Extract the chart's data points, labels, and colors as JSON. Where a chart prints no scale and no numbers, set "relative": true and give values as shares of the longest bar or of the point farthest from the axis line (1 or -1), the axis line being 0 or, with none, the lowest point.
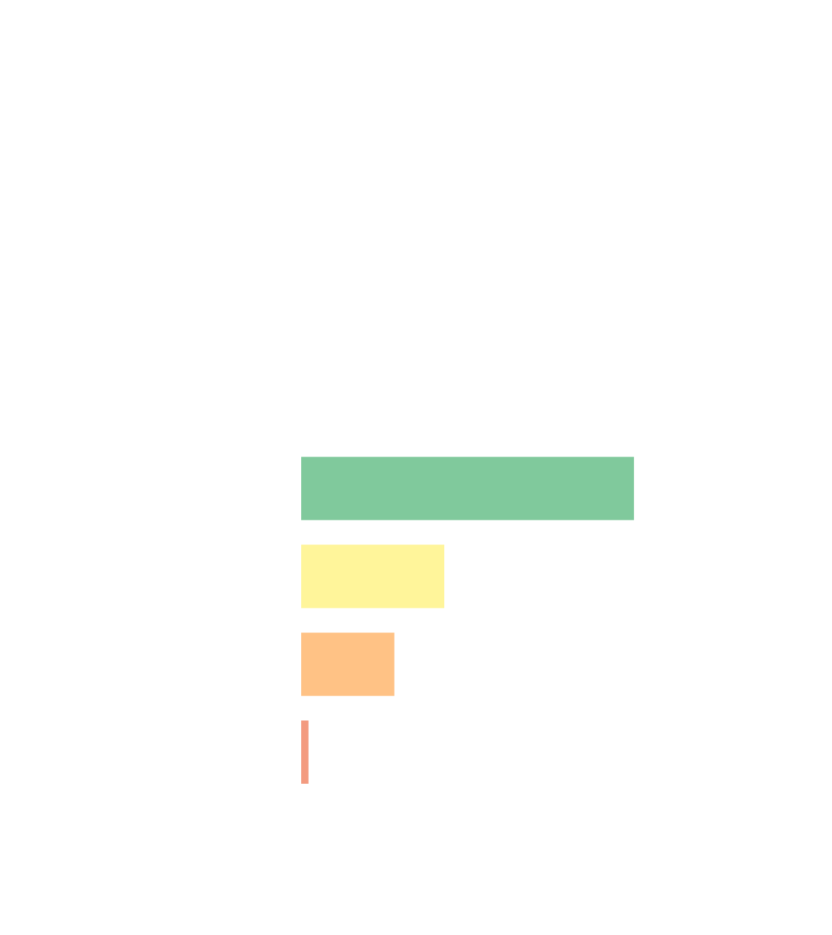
{
  "chart_data": {
    "type": "bar",
    "orientation": "horizontal",
    "relative": true,
    "categories": [
      null,
      null,
      null,
      null
    ],
    "values": [
      1,
      0.43,
      0.28,
      0.022
    ],
    "colors": [
      "#80c99c",
      "#fff59a",
      "#ffc285",
      "#f39b80"
    ]
  }
}
